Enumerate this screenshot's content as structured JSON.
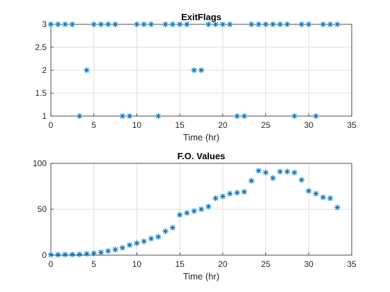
{
  "chart_data": [
    {
      "type": "scatter",
      "title": "ExitFlags",
      "xlabel": "Time (hr)",
      "ylabel": "",
      "xlim": [
        0,
        35
      ],
      "ylim": [
        1,
        3
      ],
      "xticks": [
        "0",
        "5",
        "10",
        "15",
        "20",
        "25",
        "30",
        "35"
      ],
      "yticks": [
        "1",
        "1.5",
        "2",
        "2.5",
        "3"
      ],
      "grid": true,
      "marker": "asterisk",
      "color": "#0072BD",
      "series": [
        {
          "x": [
            0,
            0.833,
            1.667,
            2.5,
            3.333,
            4.167,
            5,
            5.833,
            6.667,
            7.5,
            8.333,
            9.167,
            10,
            10.833,
            11.667,
            12.5,
            13.333,
            14.167,
            15,
            15.833,
            16.667,
            17.5,
            18.333,
            19.167,
            20,
            20.833,
            21.667,
            22.5,
            23.333,
            24.167,
            25,
            25.833,
            26.667,
            27.5,
            28.333,
            29.167,
            30,
            30.833,
            31.667,
            32.5,
            33.333
          ],
          "y": [
            3,
            3,
            3,
            3,
            1,
            2,
            3,
            3,
            3,
            3,
            1,
            1,
            3,
            3,
            3,
            1,
            3,
            3,
            3,
            3,
            2,
            2,
            3,
            3,
            3,
            3,
            1,
            1,
            3,
            3,
            3,
            3,
            3,
            3,
            1,
            3,
            3,
            1,
            3,
            3,
            3
          ]
        }
      ]
    },
    {
      "type": "scatter",
      "title": "F.O. Values",
      "xlabel": "Time (hr)",
      "ylabel": "",
      "xlim": [
        0,
        35
      ],
      "ylim": [
        0,
        100
      ],
      "xticks": [
        "0",
        "5",
        "10",
        "15",
        "20",
        "25",
        "30",
        "35"
      ],
      "yticks": [
        "0",
        "50",
        "100"
      ],
      "grid": true,
      "marker": "asterisk",
      "color": "#0072BD",
      "series": [
        {
          "x": [
            0,
            0.833,
            1.667,
            2.5,
            3.333,
            4.167,
            5,
            5.833,
            6.667,
            7.5,
            8.333,
            9.167,
            10,
            10.833,
            11.667,
            12.5,
            13.333,
            14.167,
            15,
            15.833,
            16.667,
            17.5,
            18.333,
            19.167,
            20,
            20.833,
            21.667,
            22.5,
            23.333,
            24.167,
            25,
            25.833,
            26.667,
            27.5,
            28.333,
            29.167,
            30,
            30.833,
            31.667,
            32.5,
            33.333
          ],
          "y": [
            0.5,
            0.5,
            0.6,
            0.7,
            0.8,
            1.5,
            2,
            3,
            4.5,
            6,
            8,
            11,
            13,
            15,
            18,
            20,
            26,
            30,
            44,
            46,
            48,
            50,
            53,
            62,
            64,
            67,
            68,
            69,
            81,
            92,
            90,
            84,
            91,
            91,
            90,
            82,
            70,
            67,
            63,
            62,
            52
          ]
        }
      ]
    }
  ]
}
